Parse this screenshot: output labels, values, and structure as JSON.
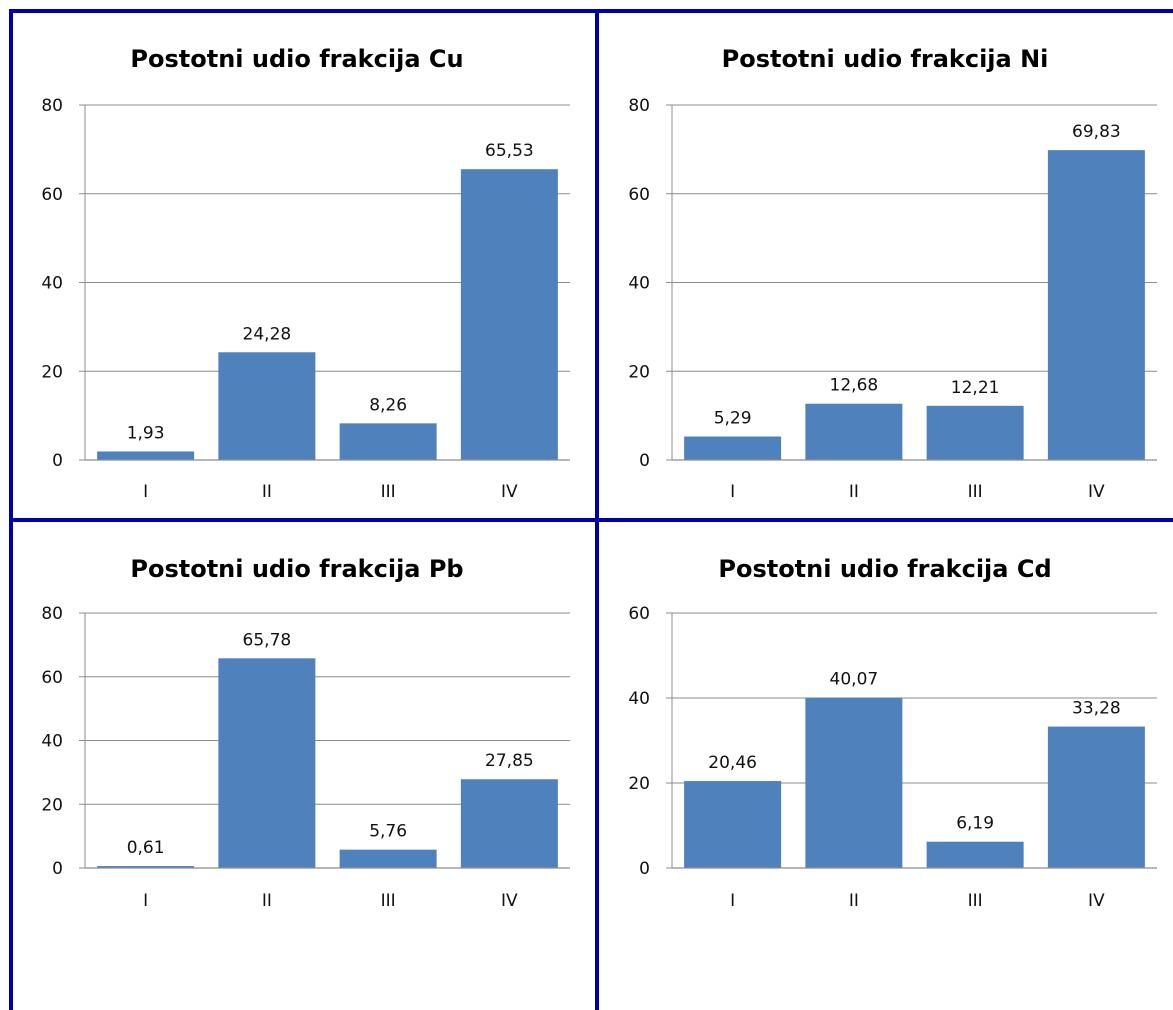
{
  "chart_data": [
    {
      "type": "bar",
      "title": "Postotni udio frakcija  Cu",
      "categories": [
        "I",
        "II",
        "III",
        "IV"
      ],
      "values": [
        1.93,
        24.28,
        8.26,
        65.53
      ],
      "value_labels": [
        "1,93",
        "24,28",
        "8,26",
        "65,53"
      ],
      "ylim": [
        0,
        80
      ],
      "yticks": [
        "0",
        "20",
        "40",
        "60",
        "80"
      ],
      "grid": true
    },
    {
      "type": "bar",
      "title": "Postotni udio frakcija  Ni",
      "categories": [
        "I",
        "II",
        "III",
        "IV"
      ],
      "values": [
        5.29,
        12.68,
        12.21,
        69.83
      ],
      "value_labels": [
        "5,29",
        "12,68",
        "12,21",
        "69,83"
      ],
      "ylim": [
        0,
        80
      ],
      "yticks": [
        "0",
        "20",
        "40",
        "60",
        "80"
      ],
      "grid": true
    },
    {
      "type": "bar",
      "title": "Postotni udio frakcija  Pb",
      "categories": [
        "I",
        "II",
        "III",
        "IV"
      ],
      "values": [
        0.61,
        65.78,
        5.76,
        27.85
      ],
      "value_labels": [
        "0,61",
        "65,78",
        "5,76",
        "27,85"
      ],
      "ylim": [
        0,
        80
      ],
      "yticks": [
        "0",
        "20",
        "40",
        "60",
        "80"
      ],
      "grid": true
    },
    {
      "type": "bar",
      "title": "Postotni udio frakcija  Cd",
      "categories": [
        "I",
        "II",
        "III",
        "IV"
      ],
      "values": [
        20.46,
        40.07,
        6.19,
        33.28
      ],
      "value_labels": [
        "20,46",
        "40,07",
        "6,19",
        "33,28"
      ],
      "ylim": [
        0,
        60
      ],
      "yticks": [
        "0",
        "20",
        "40",
        "60"
      ],
      "grid": true
    }
  ],
  "colors": {
    "bar": "#4f81bd",
    "border": "#0000a8",
    "grid": "#8c8c8c"
  }
}
